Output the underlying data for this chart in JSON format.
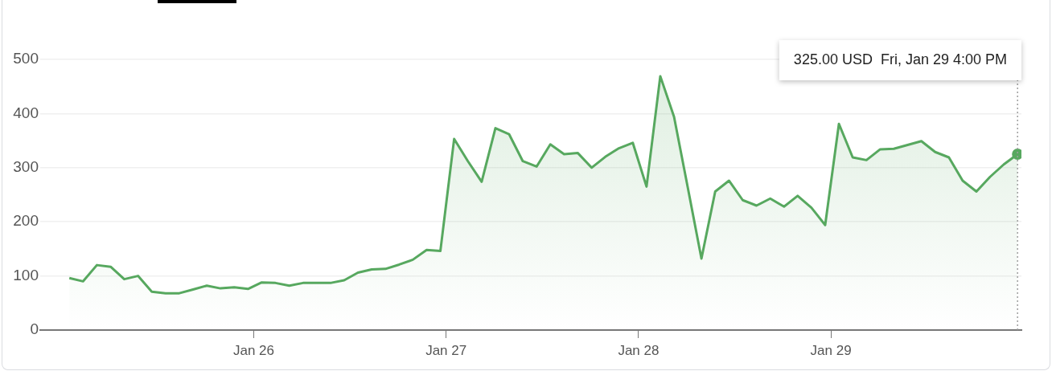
{
  "chart_data": {
    "type": "area",
    "x": [
      "--01-25T01:00",
      "--01-25T02:43",
      "--01-25T04:26",
      "--01-25T06:09",
      "--01-25T07:51",
      "--01-25T09:34",
      "--01-25T11:17",
      "--01-25T13:00",
      "--01-25T14:43",
      "--01-25T16:26",
      "--01-25T18:09",
      "--01-25T19:51",
      "--01-25T21:34",
      "--01-25T23:17",
      "--01-26T01:00",
      "--01-26T02:43",
      "--01-26T04:26",
      "--01-26T06:09",
      "--01-26T07:51",
      "--01-26T09:34",
      "--01-26T11:17",
      "--01-26T13:00",
      "--01-26T14:43",
      "--01-26T16:26",
      "--01-26T18:09",
      "--01-26T19:51",
      "--01-26T21:34",
      "--01-26T23:17",
      "--01-27T01:00",
      "--01-27T02:43",
      "--01-27T04:26",
      "--01-27T06:09",
      "--01-27T07:51",
      "--01-27T09:34",
      "--01-27T11:17",
      "--01-27T13:00",
      "--01-27T14:43",
      "--01-27T16:26",
      "--01-27T18:09",
      "--01-27T19:51",
      "--01-27T21:34",
      "--01-27T23:17",
      "--01-28T01:00",
      "--01-28T02:43",
      "--01-28T04:26",
      "--01-28T06:09",
      "--01-28T07:51",
      "--01-28T09:34",
      "--01-28T11:17",
      "--01-28T13:00",
      "--01-28T14:43",
      "--01-28T16:26",
      "--01-28T18:09",
      "--01-28T19:51",
      "--01-28T21:34",
      "--01-28T23:17",
      "--01-29T01:00",
      "--01-29T02:43",
      "--01-29T04:26",
      "--01-29T06:09",
      "--01-29T07:51",
      "--01-29T09:34",
      "--01-29T11:17",
      "--01-29T13:00",
      "--01-29T14:43",
      "--01-29T16:26",
      "--01-29T18:09",
      "--01-29T19:51",
      "--01-29T21:34",
      "--01-29T23:17"
    ],
    "series": [
      {
        "color": "#57a85f",
        "values": [
          96,
          90,
          120,
          117,
          94,
          100,
          71,
          68,
          68,
          75,
          82,
          77,
          79,
          76,
          88,
          87,
          82,
          87,
          87,
          87,
          92,
          106,
          112,
          113,
          121,
          130,
          148,
          146,
          353,
          312,
          274,
          373,
          362,
          312,
          302,
          343,
          325,
          327,
          300,
          320,
          336,
          346,
          265,
          469,
          394,
          263,
          132,
          256,
          276,
          240,
          230,
          243,
          228,
          248,
          226,
          194,
          381,
          319,
          314,
          334,
          335,
          342,
          349,
          329,
          319,
          276,
          256,
          283,
          306,
          325
        ]
      }
    ],
    "xlim": [
      "--01-24T21:22",
      "--01-29T23:46"
    ],
    "xticks": [
      {
        "value": "--01-26",
        "label": "Jan 26"
      },
      {
        "value": "--01-27",
        "label": "Jan 27"
      },
      {
        "value": "--01-28",
        "label": "Jan 28"
      },
      {
        "value": "--01-29",
        "label": "Jan 29"
      }
    ],
    "ylim": [
      0,
      500
    ],
    "yticks": [
      0,
      100,
      200,
      300,
      400,
      500
    ],
    "grid": "y",
    "legend": false,
    "marker": "none",
    "line_style": "solid",
    "ref_lines": [
      {
        "axis": "x",
        "value": "--01-29T23:17",
        "color": "#9e9e9e",
        "line_style": "dotted"
      }
    ],
    "annotations": [
      "325.00 USD  Fri, Jan 29 4:00 PM"
    ]
  }
}
